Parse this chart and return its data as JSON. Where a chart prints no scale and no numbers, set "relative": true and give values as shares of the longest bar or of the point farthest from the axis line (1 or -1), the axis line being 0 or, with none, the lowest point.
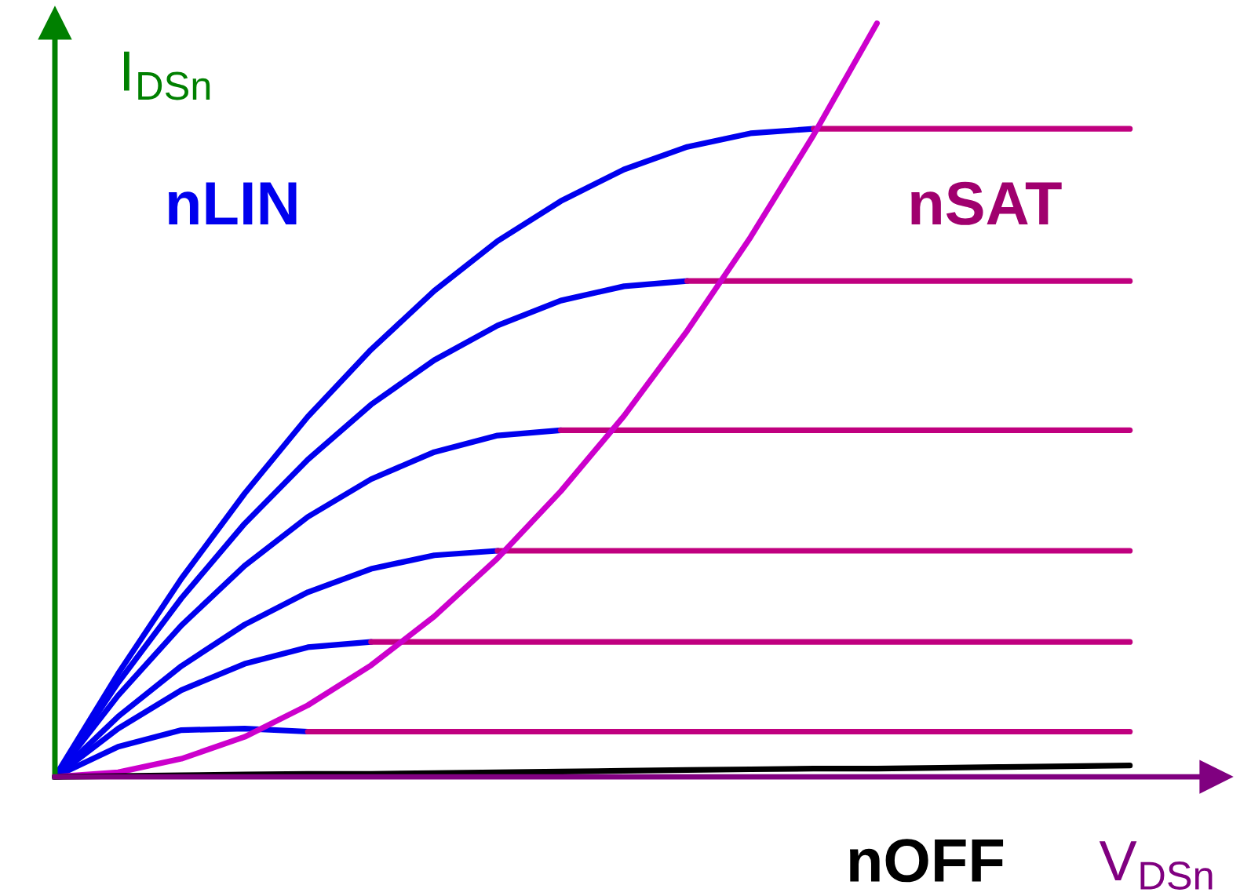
{
  "chart_data": {
    "type": "line",
    "relative": true,
    "xlabel": "V$_{DSn}$",
    "ylabel": "I$_{DSn}$",
    "annotations": [
      "nLIN",
      "nSAT",
      "nOFF"
    ],
    "categories": [
      null,
      null,
      null,
      null,
      null,
      null,
      null,
      null,
      null,
      null,
      null,
      null,
      null,
      null,
      null,
      null,
      null,
      null,
      null
    ],
    "legend": false,
    "marker": "none",
    "line_style": "solid",
    "series": [
      {
        "color": "#0000ee",
        "values": [
          0,
          0.137,
          0.263,
          0.376,
          0.478,
          0.567,
          0.645,
          0.711,
          0.764,
          0.806,
          0.836,
          0.854,
          0.86,
          null,
          null,
          null,
          null,
          null,
          null
        ]
      },
      {
        "color": "#c0007f",
        "values": [
          null,
          null,
          null,
          null,
          null,
          null,
          null,
          null,
          null,
          null,
          null,
          null,
          0.86,
          0.86,
          0.86,
          0.86,
          0.86,
          0.86,
          null
        ]
      },
      {
        "color": "#0000ee",
        "values": [
          0,
          0.125,
          0.237,
          0.336,
          0.421,
          0.494,
          0.553,
          0.599,
          0.632,
          0.651,
          0.658,
          null,
          null,
          null,
          null,
          null,
          null,
          null,
          null
        ]
      },
      {
        "color": "#c0007f",
        "values": [
          null,
          null,
          null,
          null,
          null,
          null,
          null,
          null,
          null,
          null,
          0.658,
          0.658,
          0.658,
          0.658,
          0.658,
          0.658,
          0.658,
          0.658,
          null
        ]
      },
      {
        "color": "#0000ee",
        "values": [
          0,
          0.108,
          0.201,
          0.28,
          0.345,
          0.395,
          0.431,
          0.453,
          0.46,
          null,
          null,
          null,
          null,
          null,
          null,
          null,
          null,
          null,
          null
        ]
      },
      {
        "color": "#c0007f",
        "values": [
          null,
          null,
          null,
          null,
          null,
          null,
          null,
          null,
          0.46,
          0.46,
          0.46,
          0.46,
          0.46,
          0.46,
          0.46,
          0.46,
          0.46,
          0.46,
          null
        ]
      },
      {
        "color": "#0000ee",
        "values": [
          0,
          0.08,
          0.147,
          0.202,
          0.245,
          0.276,
          0.294,
          0.3,
          null,
          null,
          null,
          null,
          null,
          null,
          null,
          null,
          null,
          null,
          null
        ]
      },
      {
        "color": "#c0007f",
        "values": [
          null,
          null,
          null,
          null,
          null,
          null,
          null,
          0.3,
          0.3,
          0.3,
          0.3,
          0.3,
          0.3,
          0.3,
          0.3,
          0.3,
          0.3,
          0.3,
          null
        ]
      },
      {
        "color": "#0000ee",
        "values": [
          0,
          0.064,
          0.115,
          0.15,
          0.172,
          0.179,
          null,
          null,
          null,
          null,
          null,
          null,
          null,
          null,
          null,
          null,
          null,
          null,
          null
        ]
      },
      {
        "color": "#c0007f",
        "values": [
          null,
          null,
          null,
          null,
          null,
          0.179,
          0.179,
          0.179,
          0.179,
          0.179,
          0.179,
          0.179,
          0.179,
          0.179,
          0.179,
          0.179,
          0.179,
          0.179,
          null
        ]
      },
      {
        "color": "#0000ee",
        "values": [
          0,
          0.04,
          0.062,
          0.064,
          0.06,
          null,
          null,
          null,
          null,
          null,
          null,
          null,
          null,
          null,
          null,
          null,
          null,
          null,
          null
        ]
      },
      {
        "color": "#c0007f",
        "values": [
          null,
          null,
          null,
          null,
          0.06,
          0.06,
          0.06,
          0.06,
          0.06,
          0.06,
          0.06,
          0.06,
          0.06,
          0.06,
          0.06,
          0.06,
          0.06,
          0.06,
          null
        ]
      },
      {
        "color": "#cc00cc",
        "values": [
          0,
          0.006,
          0.024,
          0.053,
          0.095,
          0.148,
          0.213,
          0.29,
          0.379,
          0.479,
          0.592,
          0.716,
          0.852,
          1,
          null,
          null,
          null,
          null,
          null
        ]
      },
      {
        "color": "#000000",
        "values": [
          0,
          0.001,
          0.002,
          0.003,
          0.004,
          0.004,
          0.005,
          0.006,
          0.007,
          0.008,
          0.009,
          0.01,
          0.011,
          0.011,
          0.012,
          0.013,
          0.014,
          0.015,
          null
        ]
      }
    ]
  }
}
